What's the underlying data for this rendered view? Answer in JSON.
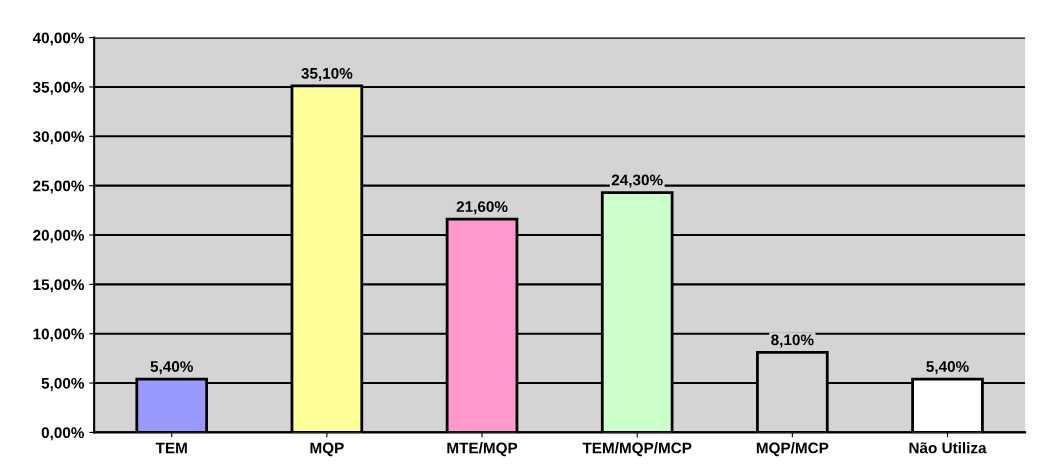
{
  "chart_data": {
    "type": "bar",
    "categories": [
      "TEM",
      "MQP",
      "MTE/MQP",
      "TEM/MQP/MCP",
      "MQP/MCP",
      "Não Utiliza"
    ],
    "values": [
      5.4,
      35.1,
      21.6,
      24.3,
      8.1,
      5.4
    ],
    "colors": [
      "#9999ff",
      "#ffff99",
      "#ff99cc",
      "#ccffcc",
      "#d4d4d4",
      "#ffffff"
    ],
    "value_labels": [
      "5,40%",
      "35,10%",
      "21,60%",
      "24,30%",
      "8,10%",
      "5,40%"
    ],
    "ylim": [
      0,
      40
    ],
    "yticks": [
      {
        "value": 0,
        "label": "0,00%"
      },
      {
        "value": 5,
        "label": "5,00%"
      },
      {
        "value": 10,
        "label": "10,00%"
      },
      {
        "value": 15,
        "label": "15,00%"
      },
      {
        "value": 20,
        "label": "20,00%"
      },
      {
        "value": 25,
        "label": "25,00%"
      },
      {
        "value": 30,
        "label": "30,00%"
      },
      {
        "value": 35,
        "label": "35,00%"
      },
      {
        "value": 40,
        "label": "40,00%"
      }
    ],
    "grid": "y"
  }
}
